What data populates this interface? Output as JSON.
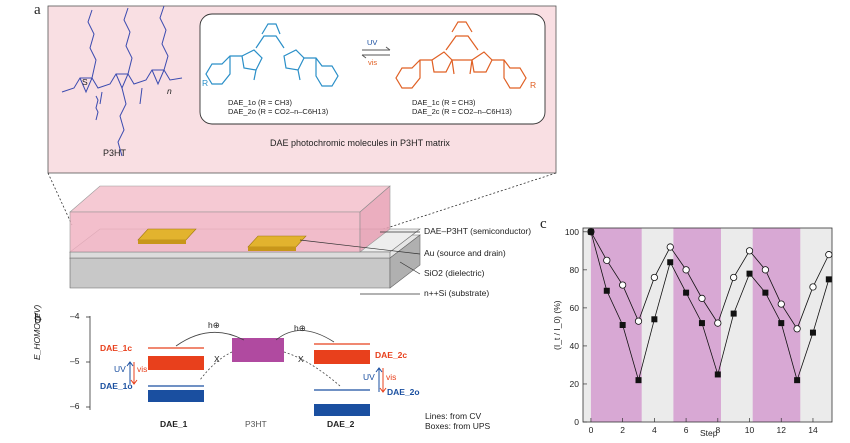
{
  "panels": {
    "a": "a",
    "b": "b",
    "c": "c"
  },
  "panel_a": {
    "polymer_label": "P3HT",
    "subscript_n": "n",
    "monomer_S": "S",
    "caption": "DAE photochromic molecules in P3HT matrix",
    "uv": "UV",
    "vis": "vis",
    "open_form": {
      "r": "R",
      "line1": "DAE_1o (R = CH3)",
      "line2": "DAE_2o (R = CO2–n–C6H13)"
    },
    "closed_form": {
      "r": "R",
      "line1": "DAE_1c (R = CH3)",
      "line2": "DAE_2c (R = CO2–n–C6H13)"
    },
    "layers": [
      "DAE–P3HT (semiconductor)",
      "Au (source and drain)",
      "SiO2 (dielectric)",
      "n++Si (substrate)"
    ]
  },
  "panel_b": {
    "ylabel": "E_HOMO (eV)",
    "yticks": [
      "–4",
      "–5",
      "–6"
    ],
    "left_top": "DAE_1c",
    "left_bottom": "DAE_1o",
    "right_top": "DAE_2c",
    "right_bottom": "DAE_2o",
    "uv": "UV",
    "vis": "vis",
    "hole": "h⊕",
    "x_mark": "X",
    "x_labels": [
      "DAE_1",
      "P3HT",
      "DAE_2"
    ],
    "notes": [
      "Lines: from CV",
      "Boxes: from UPS"
    ],
    "colors": {
      "dae_c": "#e8401c",
      "dae_o": "#1a4fa0",
      "p3ht": "#b04aa0"
    }
  },
  "chart_data": {
    "type": "line",
    "ylabel": "(I_t / I_0) (%)",
    "xlabel": "Step",
    "xlim": [
      -0.5,
      15.2
    ],
    "ylim": [
      0,
      102
    ],
    "xticks": [
      0,
      2,
      4,
      6,
      8,
      10,
      12,
      14
    ],
    "yticks": [
      0,
      20,
      40,
      60,
      80,
      100
    ],
    "shaded_uv_intervals": [
      [
        0,
        3.2
      ],
      [
        5.2,
        8.2
      ],
      [
        10.2,
        13.2
      ]
    ],
    "shade_colors": {
      "uv": "#d8a8d4",
      "vis": "#ebebeb"
    },
    "series": [
      {
        "marker": "open-circle",
        "x": [
          0,
          1,
          2,
          3,
          4,
          5,
          6,
          7,
          8,
          9,
          10,
          11,
          12,
          13,
          14,
          15
        ],
        "values": [
          100,
          85,
          72,
          53,
          76,
          92,
          80,
          65,
          52,
          76,
          90,
          80,
          62,
          49,
          71,
          88
        ]
      },
      {
        "marker": "filled-square",
        "x": [
          0,
          1,
          2,
          3,
          4,
          5,
          6,
          7,
          8,
          9,
          10,
          11,
          12,
          13,
          14,
          15
        ],
        "values": [
          100,
          69,
          51,
          22,
          54,
          84,
          68,
          52,
          25,
          57,
          78,
          68,
          52,
          22,
          47,
          75
        ]
      }
    ]
  }
}
